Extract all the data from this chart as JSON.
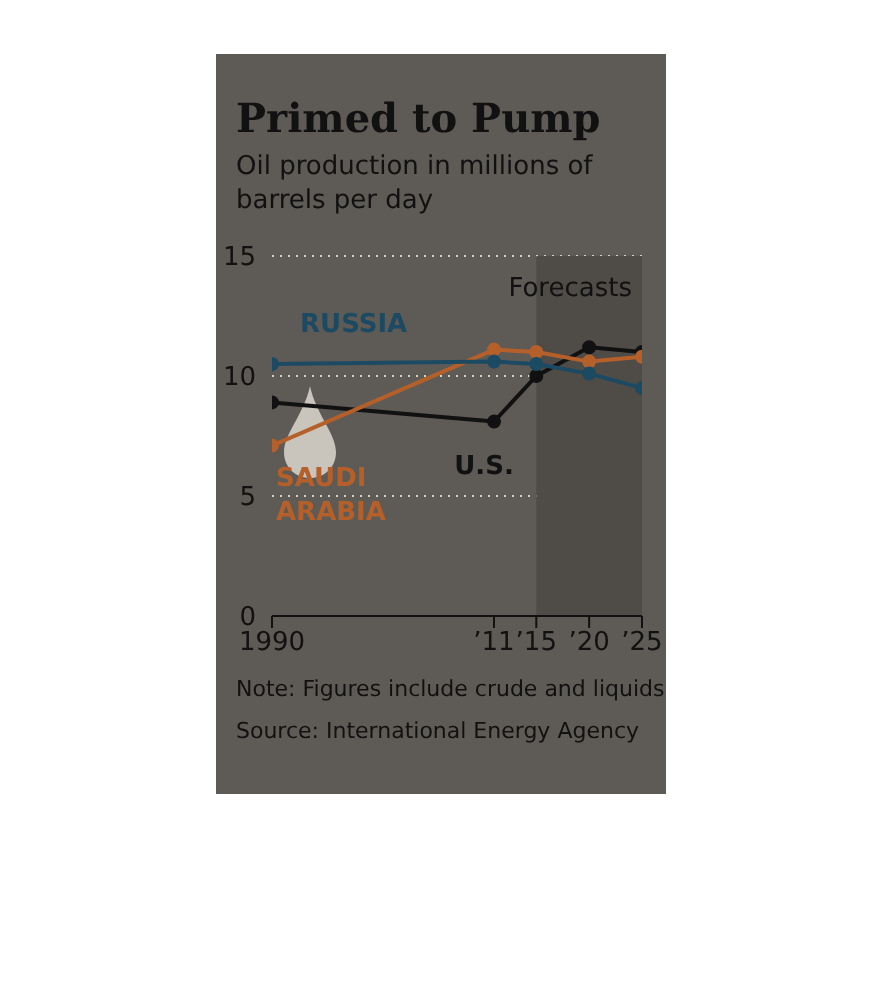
{
  "chart_data": {
    "type": "line",
    "title": "Primed to Pump",
    "subtitle": "Oil production in millions of barrels per day",
    "x": [
      1990,
      2011,
      2015,
      2020,
      2025
    ],
    "series": [
      {
        "name": "RUSSIA",
        "color": "#1d4a63",
        "values": [
          10.5,
          10.6,
          10.5,
          10.1,
          9.5
        ]
      },
      {
        "name": "SAUDI ARABIA",
        "color": "#b5602a",
        "values": [
          7.1,
          11.1,
          11.0,
          10.6,
          10.8
        ]
      },
      {
        "name": "U.S.",
        "color": "#111111",
        "values": [
          8.9,
          8.1,
          10.0,
          11.2,
          11.0
        ]
      }
    ],
    "xlim": [
      1990,
      2025
    ],
    "xticks": [
      1990,
      {
        "value": 2011,
        "label": "’11"
      },
      {
        "value": 2015,
        "label": "’15"
      },
      {
        "value": 2020,
        "label": "’20"
      },
      {
        "value": 2025,
        "label": "’25"
      }
    ],
    "ylim": [
      0,
      15
    ],
    "yticks": [
      0,
      5,
      10,
      15
    ],
    "bands": [
      {
        "axis": "x",
        "from": 2015,
        "to": 2025,
        "label": "Forecasts",
        "color": "#4f4b46"
      }
    ],
    "grid": "y",
    "legend": false,
    "marker": "circle",
    "line_style": "solid",
    "annotations": [
      "Note: Figures include crude and liquids",
      "Source: International Energy Agency"
    ]
  }
}
